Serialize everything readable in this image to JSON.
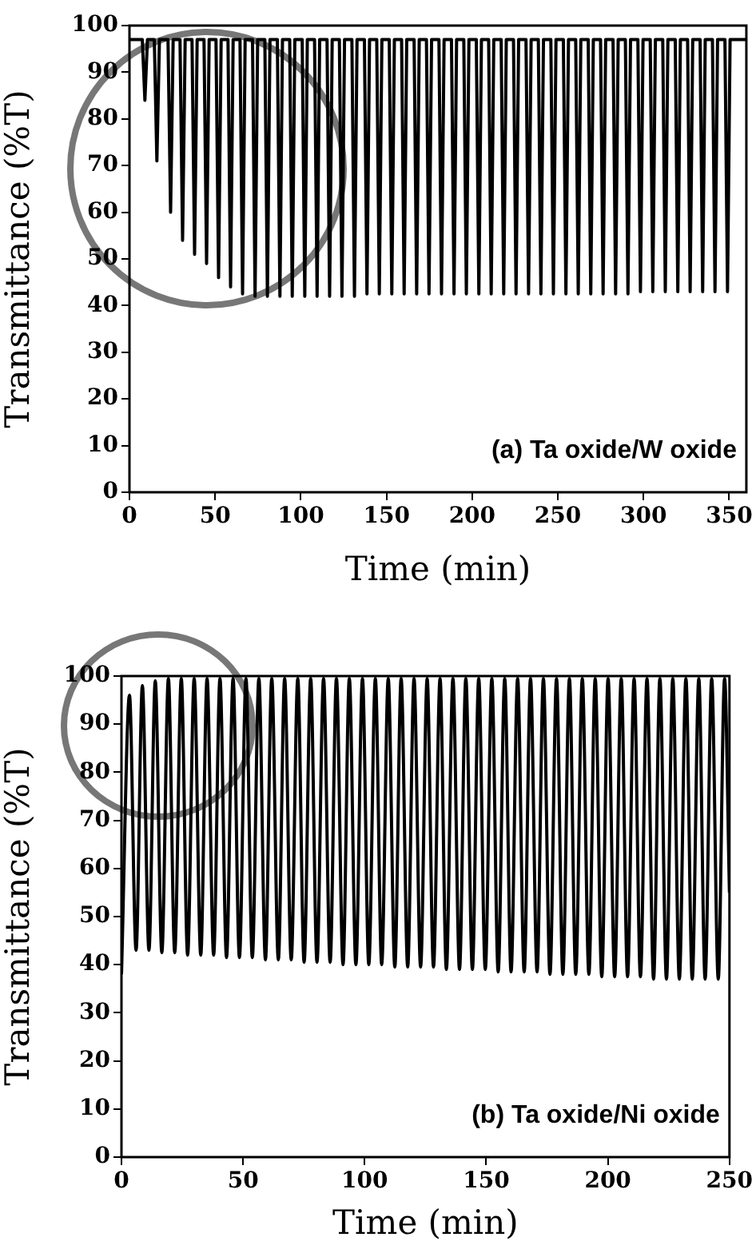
{
  "chart_data": [
    {
      "type": "line",
      "xlabel": "Time (min)",
      "ylabel": "Transmittance (%T)",
      "annotations": [
        "(a) Ta oxide/W oxide"
      ],
      "x": [
        0,
        7.5,
        9,
        10.5,
        14.5,
        16,
        17.5,
        22.5,
        24,
        25.5,
        29.5,
        31,
        32.5,
        36.5,
        38,
        39.5,
        43.5,
        45,
        46.5,
        50.5,
        52,
        53.5,
        57.5,
        59,
        60.5,
        64.5,
        66,
        67.5,
        71.8,
        73.3,
        74.8,
        79,
        80.5,
        82,
        86.3,
        87.8,
        89.3,
        93.5,
        95,
        96.5,
        100.8,
        102.3,
        103.8,
        108,
        109.5,
        111,
        115.3,
        116.8,
        118.3,
        122.5,
        124,
        125.5,
        129.8,
        131.3,
        132.8,
        137.1,
        138.6,
        140.1,
        144.3,
        145.8,
        147.3,
        151.6,
        153.1,
        154.6,
        158.8,
        160.3,
        161.8,
        166.1,
        167.6,
        169.1,
        173.3,
        174.8,
        176.3,
        180.6,
        182.1,
        183.6,
        187.9,
        189.4,
        190.9,
        195.1,
        196.6,
        198.1,
        202.4,
        203.9,
        205.4,
        209.6,
        211.1,
        212.6,
        216.9,
        218.4,
        219.9,
        224.1,
        225.6,
        227.1,
        231.4,
        232.9,
        234.4,
        238.6,
        240.1,
        241.6,
        245.9,
        247.4,
        248.9,
        253.2,
        254.7,
        256.2,
        260.4,
        261.9,
        263.4,
        267.7,
        269.2,
        270.7,
        274.9,
        276.4,
        277.9,
        282.2,
        283.7,
        285.2,
        289.4,
        290.9,
        292.4,
        296.7,
        298.2,
        299.7,
        303.9,
        305.4,
        306.9,
        311.2,
        312.7,
        314.2,
        318.5,
        320,
        321.5,
        325.7,
        327.2,
        328.7,
        333,
        334.5,
        336,
        340.2,
        341.7,
        343.2,
        347.5,
        349,
        350.5,
        360
      ],
      "series": [
        {
          "color": "#000000",
          "values": [
            97,
            97,
            84,
            97,
            97,
            71,
            97,
            97,
            60,
            97,
            97,
            54,
            97,
            97,
            51,
            97,
            97,
            49,
            97,
            97,
            46,
            97,
            97,
            44,
            97,
            97,
            42.5,
            97,
            97,
            42,
            97,
            97,
            42,
            97,
            97,
            42,
            97,
            97,
            42,
            97,
            97,
            42,
            97,
            97,
            42,
            97,
            97,
            42,
            97,
            97,
            42,
            97,
            97,
            42,
            97,
            97,
            42.5,
            97,
            97,
            42.5,
            97,
            97,
            42.5,
            97,
            97,
            42.5,
            97,
            97,
            42.5,
            97,
            97,
            42.5,
            97,
            97,
            42.5,
            97,
            97,
            42.5,
            97,
            97,
            42.5,
            97,
            97,
            42.5,
            97,
            97,
            42.5,
            97,
            97,
            42.5,
            97,
            97,
            42.5,
            97,
            97,
            42.5,
            97,
            97,
            42.5,
            97,
            97,
            42.5,
            97,
            97,
            42.5,
            97,
            97,
            42.5,
            97,
            97,
            42.5,
            97,
            97,
            42.5,
            97,
            97,
            42.5,
            97,
            97,
            42.5,
            97,
            97,
            43,
            97,
            97,
            43,
            97,
            97,
            43,
            97,
            97,
            43,
            97,
            97,
            43,
            97,
            97,
            43,
            97,
            97,
            43,
            97,
            97,
            43,
            97,
            97
          ]
        }
      ],
      "xlim": [
        0,
        360
      ],
      "xticks": [
        0,
        50,
        100,
        150,
        200,
        250,
        300,
        350
      ],
      "ylim": [
        0,
        100
      ],
      "yticks": [
        0,
        10,
        20,
        30,
        40,
        50,
        60,
        70,
        80,
        90,
        100
      ],
      "grid": false,
      "legend": false,
      "marker": "none",
      "line_style": "solid"
    },
    {
      "type": "line",
      "xlabel": "Time (min)",
      "ylabel": "Transmittance (%T)",
      "annotations": [
        "(b) Ta oxide/Ni oxide"
      ],
      "x": [
        0,
        3.3,
        6.0,
        8.6,
        11.3,
        13.9,
        16.6,
        19.3,
        21.9,
        24.6,
        27.2,
        29.9,
        32.6,
        35.2,
        37.9,
        40.5,
        43.2,
        45.9,
        48.5,
        51.2,
        53.8,
        56.5,
        59.2,
        61.8,
        64.5,
        67.1,
        69.8,
        72.5,
        75.1,
        77.8,
        80.4,
        83.1,
        85.8,
        88.4,
        91.1,
        93.7,
        96.4,
        99.1,
        101.7,
        104.4,
        107.0,
        109.7,
        112.4,
        115.0,
        117.7,
        120.3,
        123.0,
        125.7,
        128.3,
        131.0,
        133.6,
        136.3,
        139.0,
        141.6,
        144.3,
        146.9,
        149.6,
        152.3,
        154.9,
        157.6,
        160.2,
        162.9,
        165.6,
        168.2,
        170.9,
        173.5,
        176.2,
        178.9,
        181.5,
        184.2,
        186.8,
        189.5,
        192.2,
        194.8,
        197.5,
        200.1,
        202.8,
        205.5,
        208.1,
        210.8,
        213.4,
        216.1,
        218.8,
        221.4,
        224.1,
        226.7,
        229.4,
        232.1,
        234.7,
        237.4,
        240.0,
        242.7,
        245.4,
        248.0,
        250
      ],
      "series": [
        {
          "color": "#000000",
          "values": [
            38,
            96,
            43,
            98,
            43,
            99,
            42.5,
            99.5,
            42.5,
            99.5,
            42,
            99.5,
            42,
            99.5,
            42,
            99.5,
            41.5,
            99.5,
            41.5,
            99.5,
            41.5,
            99.5,
            41,
            99.5,
            41,
            99.5,
            41,
            99.5,
            40.5,
            99.5,
            40.5,
            99.5,
            40.5,
            99.5,
            40,
            99.5,
            40,
            99.5,
            40,
            99.5,
            40,
            99.5,
            39.5,
            99.5,
            39.5,
            99.5,
            39.5,
            99.5,
            39.5,
            99.5,
            39,
            99.5,
            39,
            99.5,
            39,
            99.5,
            39,
            99.5,
            38.5,
            99.5,
            38.5,
            99.5,
            38.5,
            99.5,
            38.5,
            99.5,
            38,
            99.5,
            38,
            99.5,
            38,
            99.5,
            38,
            99.5,
            37.5,
            99.5,
            37.5,
            99.5,
            37.5,
            99.5,
            37.5,
            99.5,
            37,
            99.5,
            37,
            99.5,
            37,
            99.5,
            37,
            99.5,
            37,
            99.5,
            37,
            99.5,
            55
          ]
        }
      ],
      "xlim": [
        0,
        250
      ],
      "xticks": [
        0,
        50,
        100,
        150,
        200,
        250
      ],
      "ylim": [
        0,
        100
      ],
      "yticks": [
        0,
        10,
        20,
        30,
        40,
        50,
        60,
        70,
        80,
        90,
        100
      ],
      "grid": false,
      "legend": false,
      "marker": "none",
      "line_style": "solid"
    }
  ]
}
